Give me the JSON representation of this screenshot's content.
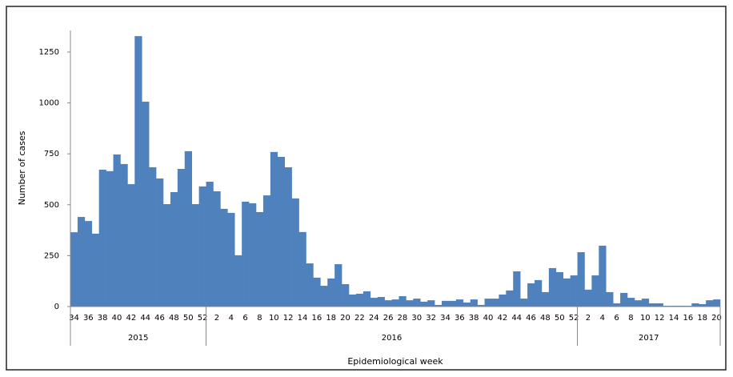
{
  "chart_data": {
    "type": "bar",
    "color": "#4f81bd",
    "y_label": "Number of cases",
    "x_label": "Epidemiological week",
    "ylim": [
      0,
      1356
    ],
    "yticks": [
      0,
      250,
      500,
      750,
      1000,
      1250
    ],
    "groups": [
      {
        "name": "2015",
        "categories": [
          "34",
          null,
          "36",
          null,
          "38",
          null,
          "40",
          null,
          "42",
          null,
          "44",
          null,
          "46",
          null,
          "48",
          null,
          "50",
          null,
          "52"
        ],
        "values": [
          365,
          440,
          420,
          358,
          672,
          665,
          747,
          700,
          601,
          1328,
          1006,
          684,
          629,
          503,
          562,
          676,
          763,
          503,
          590
        ]
      },
      {
        "name": "2016",
        "categories": [
          null,
          "2",
          null,
          "4",
          null,
          "6",
          null,
          "8",
          null,
          "10",
          null,
          "12",
          null,
          "14",
          null,
          "16",
          null,
          "18",
          null,
          "20",
          null,
          "22",
          null,
          "24",
          null,
          "26",
          null,
          "28",
          null,
          "30",
          null,
          "32",
          null,
          "34",
          null,
          "36",
          null,
          "38",
          null,
          "40",
          null,
          "42",
          null,
          "44",
          null,
          "46",
          null,
          "48",
          null,
          "50",
          null,
          "52"
        ],
        "values": [
          613,
          566,
          480,
          460,
          252,
          515,
          507,
          464,
          546,
          759,
          735,
          684,
          531,
          366,
          212,
          142,
          102,
          138,
          208,
          110,
          59,
          63,
          75,
          43,
          47,
          31,
          35,
          51,
          31,
          39,
          24,
          31,
          8,
          28,
          28,
          35,
          20,
          35,
          8,
          39,
          39,
          59,
          79,
          173,
          39,
          114,
          130,
          71,
          189,
          169,
          138,
          153
        ]
      },
      {
        "name": "2017",
        "categories": [
          null,
          "2",
          null,
          "4",
          null,
          "6",
          null,
          "8",
          null,
          "10",
          null,
          "12",
          null,
          "14",
          null,
          "16",
          null,
          "18",
          null,
          "20"
        ],
        "values": [
          267,
          83,
          153,
          299,
          71,
          16,
          67,
          43,
          31,
          39,
          16,
          16,
          4,
          4,
          4,
          4,
          16,
          12,
          31,
          35
        ]
      }
    ]
  }
}
